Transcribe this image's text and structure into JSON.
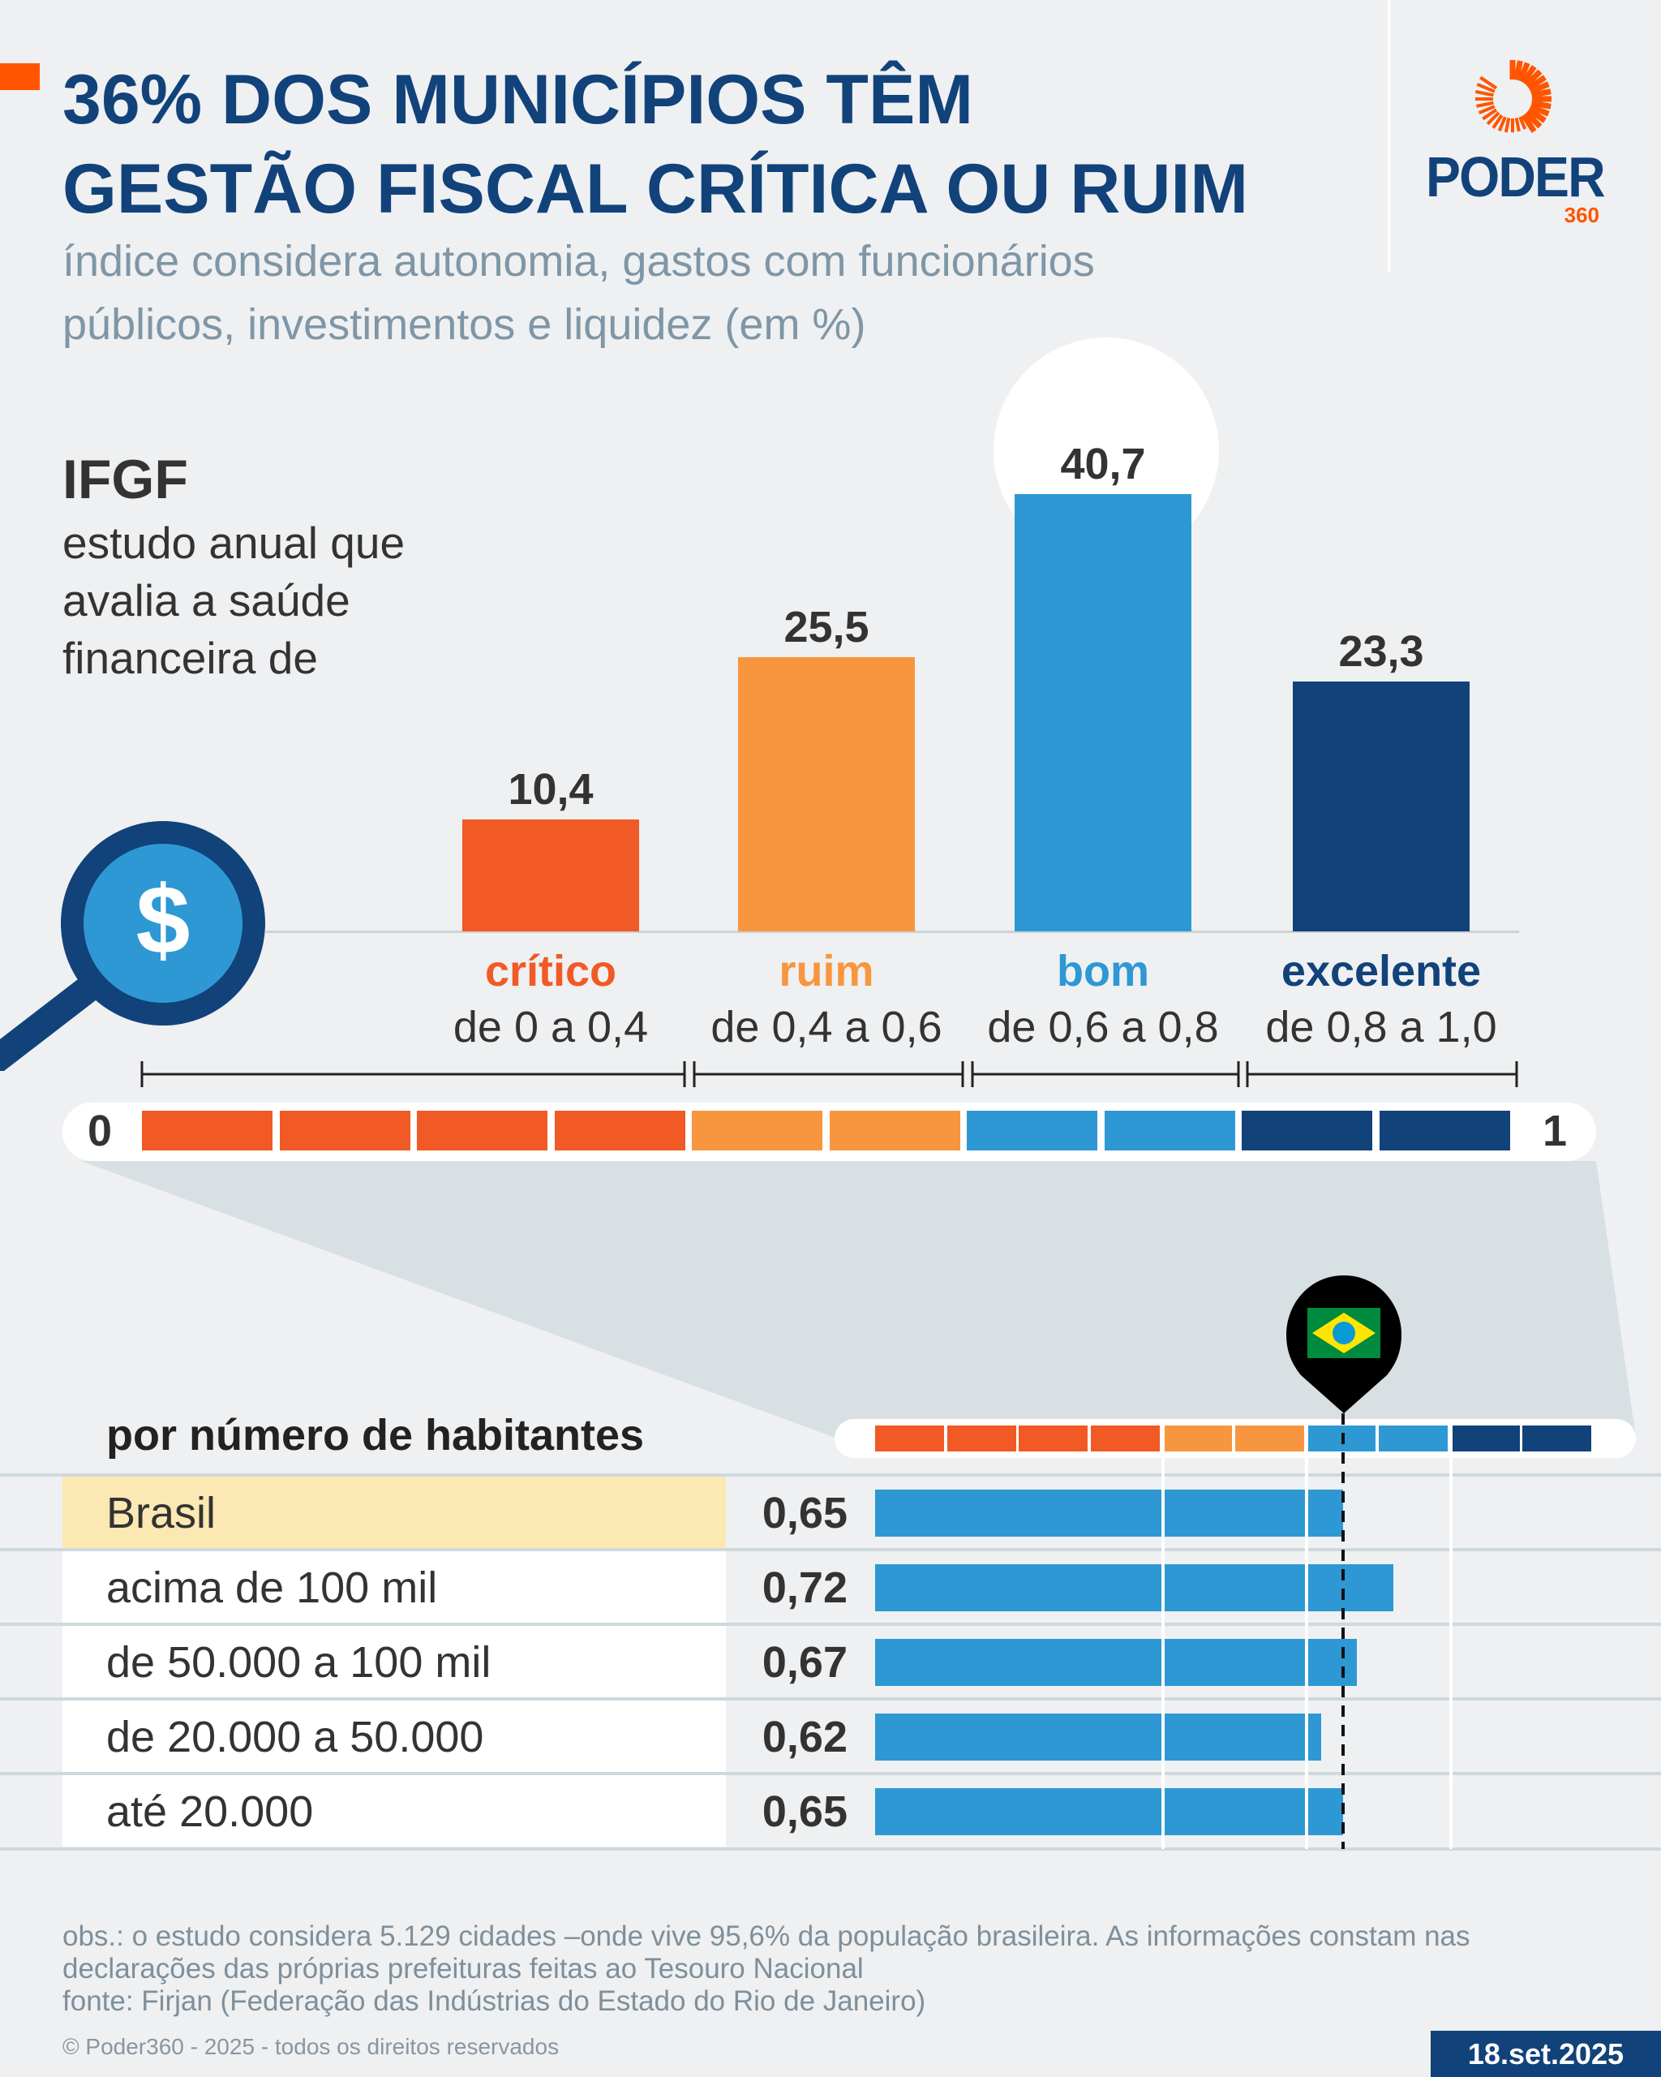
{
  "header": {
    "title_line1": "36% DOS MUNICÍPIOS TÊM",
    "title_line2": "GESTÃO FISCAL CRÍTICA OU RUIM",
    "subtitle_line1": "índice considera autonomia, gastos com funcionários",
    "subtitle_line2": "públicos, investimentos e liquidez (em %)"
  },
  "logo": {
    "name": "PODER",
    "suffix": "360"
  },
  "intro": {
    "heading": "IFGF",
    "lines": [
      "estudo anual que",
      "avalia a saúde",
      "financeira de"
    ]
  },
  "colors": {
    "critico": "#f15a24",
    "ruim": "#f7963f",
    "bom": "#2e98d4",
    "excelente": "#12427a",
    "title": "#12427a",
    "accent": "#ff5500"
  },
  "scale": {
    "min_label": "0",
    "max_label": "1"
  },
  "section2": {
    "heading": "por número de habitantes"
  },
  "chart_data": [
    {
      "type": "bar",
      "categories": [
        "crítico",
        "ruim",
        "bom",
        "excelente"
      ],
      "ranges": [
        "de 0 a 0,4",
        "de 0,4 a 0,6",
        "de 0,6 a 0,8",
        "de 0,8 a 1,0"
      ],
      "values": [
        10.4,
        25.5,
        40.7,
        23.3
      ],
      "value_labels": [
        "10,4",
        "25,5",
        "40,7",
        "23,3"
      ],
      "unit": "%"
    },
    {
      "type": "bar",
      "orientation": "horizontal",
      "categories": [
        "Brasil",
        "acima de 100 mil",
        "de 50.000 a 100 mil",
        "de 20.000 a 50.000",
        "até 20.000"
      ],
      "values": [
        0.65,
        0.72,
        0.67,
        0.62,
        0.65
      ],
      "value_labels": [
        "0,65",
        "0,72",
        "0,67",
        "0,62",
        "0,65"
      ],
      "xlim": [
        0,
        1
      ],
      "reference_line": 0.65,
      "gridlines": [
        0.4,
        0.6,
        0.8
      ]
    }
  ],
  "footer": {
    "obs_line1": "obs.: o estudo considera 5.129 cidades –onde vive 95,6% da população brasileira. As informações constam nas",
    "obs_line2": "declarações das próprias prefeituras feitas ao Tesouro Nacional",
    "source": "fonte: Firjan (Federação das Indústrias do Estado do Rio de Janeiro)",
    "copyright": "© Poder360 - 2025 - todos os direitos reservados",
    "date": "18.set.2025"
  }
}
